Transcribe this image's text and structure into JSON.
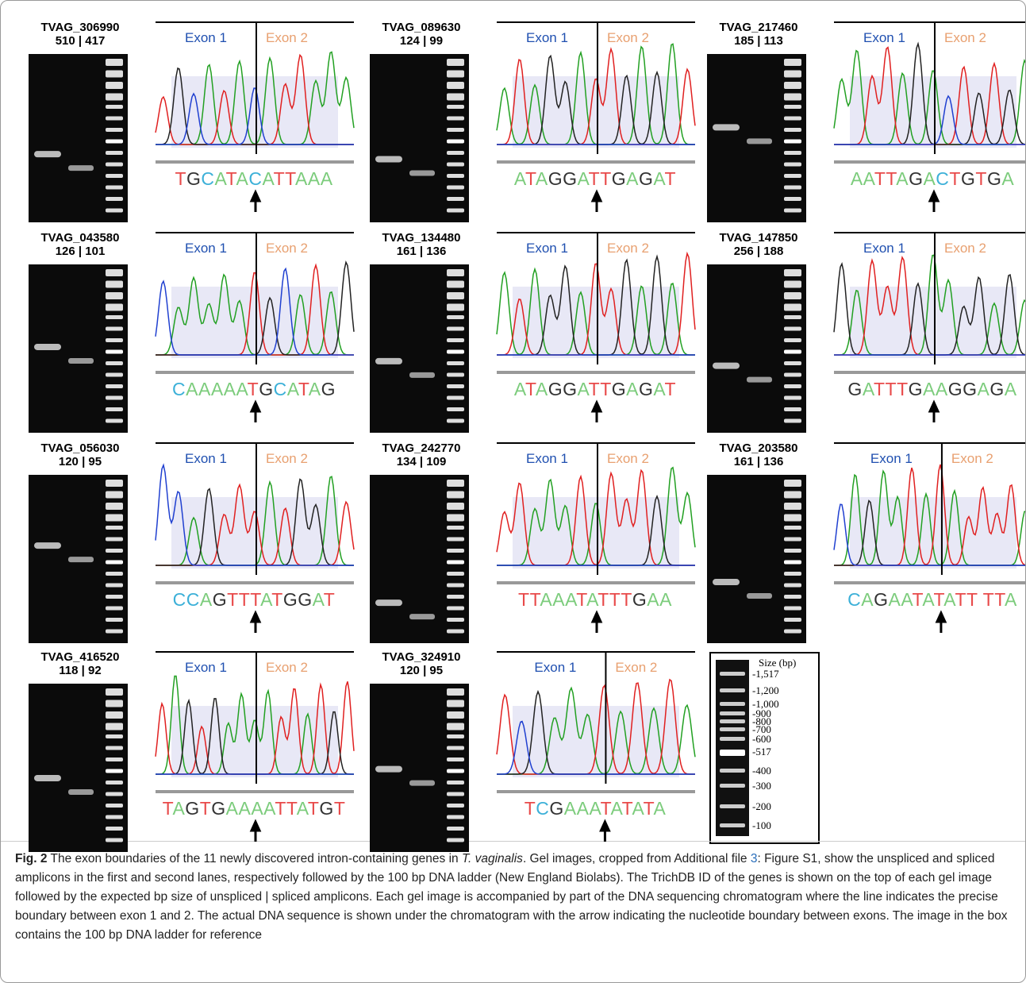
{
  "panels": [
    {
      "id": "TVAG_306990",
      "sizes": "510 | 417",
      "exon1": "Exon 1",
      "exon2": "Exon 2",
      "sequence": "TGCATACATTAAA"
    },
    {
      "id": "TVAG_089630",
      "sizes": "124 | 99",
      "exon1": "Exon 1",
      "exon2": "Exon 2",
      "sequence": "ATAGGATTGAGAT"
    },
    {
      "id": "TVAG_217460",
      "sizes": "185 | 113",
      "exon1": "Exon 1",
      "exon2": "Exon 2",
      "sequence": "AATTAGACTGTGA"
    },
    {
      "id": "TVAG_043580",
      "sizes": "126 | 101",
      "exon1": "Exon 1",
      "exon2": "Exon 2",
      "sequence": "CAAAAATGCATAG"
    },
    {
      "id": "TVAG_134480",
      "sizes": "161 | 136",
      "exon1": "Exon 1",
      "exon2": "Exon 2",
      "sequence": "ATAGGATTGAGAT"
    },
    {
      "id": "TVAG_147850",
      "sizes": "256 | 188",
      "exon1": "Exon 1",
      "exon2": "Exon 2",
      "sequence": "GATTTGAAGGAGA"
    },
    {
      "id": "TVAG_056030",
      "sizes": "120 | 95",
      "exon1": "Exon 1",
      "exon2": "Exon 2",
      "sequence": "CCAGTTTATGGAT"
    },
    {
      "id": "TVAG_242770",
      "sizes": "134 | 109",
      "exon1": "Exon 1",
      "exon2": "Exon 2",
      "sequence": "TTAAATATTTGAA"
    },
    {
      "id": "TVAG_203580",
      "sizes": "161 | 136",
      "exon1": "Exon 1",
      "exon2": "Exon 2",
      "sequence": "CAGAATATATT TTA"
    },
    {
      "id": "TVAG_416520",
      "sizes": "118 | 92",
      "exon1": "Exon 1",
      "exon2": "Exon 2",
      "sequence": "TAGTGAAAATTATGT"
    },
    {
      "id": "TVAG_324910",
      "sizes": "120 | 95",
      "exon1": "Exon 1",
      "exon2": "Exon 2",
      "sequence": "TCGAAATATATA"
    }
  ],
  "ladder": {
    "title": "Size (bp)",
    "labels": [
      "-1,517",
      "-1,200",
      "-1,000",
      "-900",
      "-800",
      "-700",
      "-600",
      "-517",
      "-400",
      "-300",
      "-200",
      "-100"
    ]
  },
  "caption": {
    "label": "Fig. 2",
    "text1": " The exon boundaries of the 11 newly discovered intron-containing genes in ",
    "species": "T. vaginalis",
    "text2": ". Gel images, cropped from Additional file ",
    "link": "3",
    "text3": ": Figure S1, show the unspliced and spliced amplicons in the first and second lanes, respectively followed by the 100 bp DNA ladder (New England Biolabs). The TrichDB ID of the genes is shown on the top of each gel image followed by the expected bp size of unspliced | spliced amplicons. Each gel image is accompanied by part of the DNA sequencing chromatogram where the line indicates the precise boundary between exon 1 and 2. The actual DNA sequence is shown under the chromatogram with the arrow indicating the nucleotide boundary between exons. The image in the box contains the 100 bp DNA ladder for reference"
  }
}
